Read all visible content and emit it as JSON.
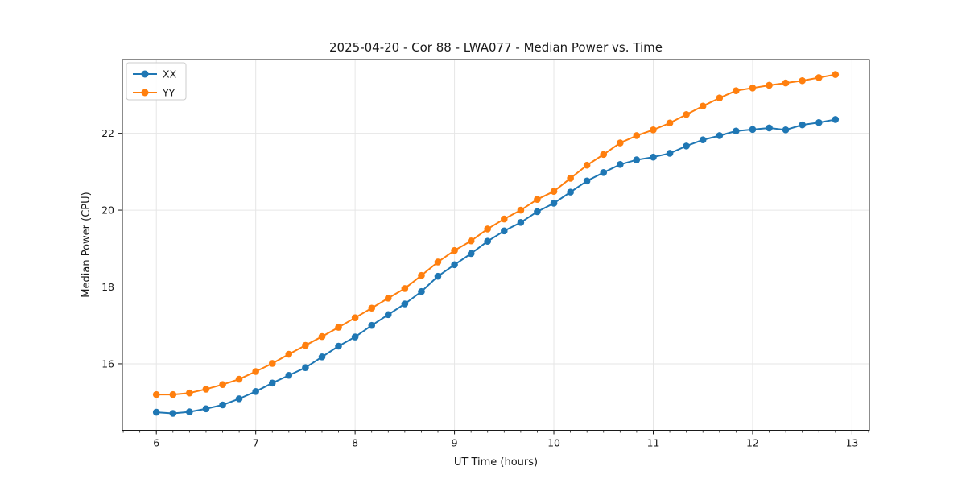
{
  "chart_data": {
    "type": "line",
    "title": "2025-04-20 - Cor 88 - LWA077 - Median Power vs. Time",
    "xlabel": "UT Time (hours)",
    "ylabel": "Median Power (CPU)",
    "xlim": [
      5.658,
      13.175
    ],
    "ylim": [
      14.27,
      23.92
    ],
    "xticks": [
      6,
      7,
      8,
      9,
      10,
      11,
      12,
      13
    ],
    "yticks": [
      16,
      18,
      20,
      22
    ],
    "x_minor_step": 0.1666667,
    "grid": true,
    "grid_color": "#e6e6e6",
    "spine_color": "#1a1a1a",
    "legend_position": "upper-left",
    "x": [
      6.0,
      6.167,
      6.333,
      6.5,
      6.667,
      6.833,
      7.0,
      7.167,
      7.333,
      7.5,
      7.667,
      7.833,
      8.0,
      8.167,
      8.333,
      8.5,
      8.667,
      8.833,
      9.0,
      9.167,
      9.333,
      9.5,
      9.667,
      9.833,
      10.0,
      10.167,
      10.333,
      10.5,
      10.667,
      10.833,
      11.0,
      11.167,
      11.333,
      11.5,
      11.667,
      11.833,
      12.0,
      12.167,
      12.333,
      12.5,
      12.667,
      12.833
    ],
    "series": [
      {
        "name": "XX",
        "color": "#1f77b4",
        "values": [
          14.74,
          14.71,
          14.75,
          14.83,
          14.93,
          15.09,
          15.28,
          15.5,
          15.7,
          15.9,
          16.18,
          16.46,
          16.7,
          17.0,
          17.28,
          17.56,
          17.88,
          18.28,
          18.58,
          18.87,
          19.19,
          19.46,
          19.68,
          19.96,
          20.18,
          20.47,
          20.76,
          20.98,
          21.19,
          21.31,
          21.38,
          21.48,
          21.67,
          21.83,
          21.94,
          22.06,
          22.1,
          22.14,
          22.09,
          22.22,
          22.28,
          22.36
        ]
      },
      {
        "name": "YY",
        "color": "#ff7f0e",
        "values": [
          15.2,
          15.2,
          15.24,
          15.34,
          15.46,
          15.6,
          15.8,
          16.01,
          16.25,
          16.48,
          16.71,
          16.95,
          17.2,
          17.45,
          17.71,
          17.96,
          18.3,
          18.65,
          18.95,
          19.2,
          19.51,
          19.77,
          20.0,
          20.28,
          20.49,
          20.83,
          21.17,
          21.45,
          21.75,
          21.94,
          22.09,
          22.27,
          22.49,
          22.71,
          22.92,
          23.11,
          23.18,
          23.25,
          23.31,
          23.37,
          23.45,
          23.53
        ]
      }
    ]
  }
}
